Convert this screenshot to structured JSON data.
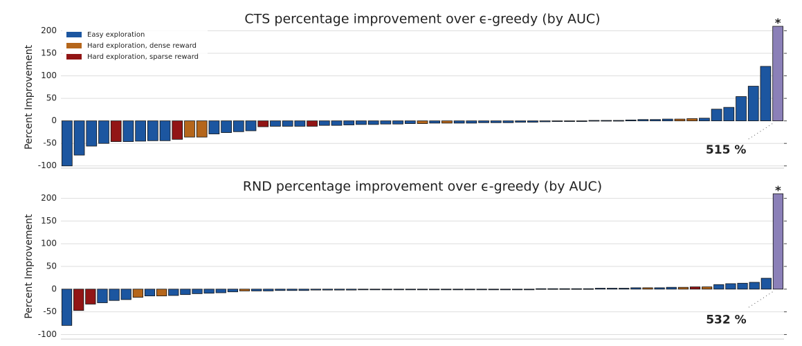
{
  "chart_data": [
    {
      "type": "bar",
      "title": "CTS percentage improvement over ϵ-greedy (by AUC)",
      "y_label": "Percent Improvement",
      "legend": [
        {
          "name": "Easy exploration",
          "color": "#1c56a0"
        },
        {
          "name": "Hard exploration, dense reward",
          "color": "#b5661b"
        },
        {
          "name": "Hard exploration, sparse reward",
          "color": "#921515"
        }
      ],
      "legend_position": "upper left",
      "values": [
        -100,
        -76,
        -56,
        -50,
        -46,
        -46,
        -45,
        -44,
        -44,
        -41,
        -36,
        -36,
        -29,
        -26,
        -24,
        -22,
        -13,
        -12,
        -12,
        -12,
        -12,
        -10,
        -10,
        -9,
        -8,
        -8,
        -7,
        -7,
        -6,
        -6,
        -5,
        -5,
        -5,
        -5,
        -4,
        -4,
        -4,
        -3,
        -3,
        -2,
        -1,
        -1,
        0,
        1,
        1,
        1,
        2,
        3,
        3,
        4,
        4,
        5,
        6,
        26,
        30,
        54,
        77,
        121,
        515
      ],
      "colors": [
        "#1c56a0",
        "#1c56a0",
        "#1c56a0",
        "#1c56a0",
        "#921515",
        "#1c56a0",
        "#1c56a0",
        "#1c56a0",
        "#1c56a0",
        "#921515",
        "#b5661b",
        "#b5661b",
        "#1c56a0",
        "#1c56a0",
        "#1c56a0",
        "#1c56a0",
        "#921515",
        "#1c56a0",
        "#1c56a0",
        "#1c56a0",
        "#921515",
        "#1c56a0",
        "#1c56a0",
        "#1c56a0",
        "#1c56a0",
        "#1c56a0",
        "#1c56a0",
        "#1c56a0",
        "#1c56a0",
        "#b5661b",
        "#1c56a0",
        "#b5661b",
        "#1c56a0",
        "#1c56a0",
        "#1c56a0",
        "#1c56a0",
        "#1c56a0",
        "#1c56a0",
        "#1c56a0",
        "#1c56a0",
        "#1c56a0",
        "#1c56a0",
        "#1c56a0",
        "#1c56a0",
        "#1c56a0",
        "#1c56a0",
        "#1c56a0",
        "#1c56a0",
        "#1c56a0",
        "#1c56a0",
        "#b5661b",
        "#b5661b",
        "#1c56a0",
        "#1c56a0",
        "#1c56a0",
        "#1c56a0",
        "#1c56a0",
        "#1c56a0",
        "#8b80b8"
      ],
      "value_labels": [
        null,
        null,
        null,
        null,
        null,
        null,
        null,
        null,
        null,
        null,
        null,
        null,
        null,
        null,
        null,
        null,
        null,
        null,
        null,
        null,
        null,
        null,
        null,
        null,
        null,
        null,
        null,
        null,
        null,
        null,
        null,
        null,
        null,
        null,
        null,
        null,
        null,
        null,
        null,
        null,
        null,
        null,
        null,
        null,
        null,
        null,
        null,
        null,
        null,
        null,
        null,
        null,
        null,
        null,
        null,
        null,
        null,
        null,
        "515 %"
      ],
      "clip_marker": "*",
      "ylim": [
        -105,
        210
      ],
      "yticks": [
        -100,
        -50,
        0,
        50,
        100,
        150,
        200
      ],
      "grid": true
    },
    {
      "type": "bar",
      "title": "RND percentage improvement over ϵ-greedy (by AUC)",
      "y_label": "Percent Improvement",
      "values": [
        -80,
        -47,
        -33,
        -30,
        -25,
        -23,
        -18,
        -15,
        -15,
        -14,
        -12,
        -10,
        -9,
        -8,
        -6,
        -4,
        -4,
        -4,
        -3,
        -3,
        -3,
        -2,
        -2,
        -2,
        -2,
        -1,
        -1,
        -1,
        -1,
        -1,
        -1,
        -1,
        0,
        0,
        0,
        0,
        0,
        0,
        0,
        0,
        1,
        1,
        1,
        1,
        1,
        2,
        2,
        2,
        3,
        3,
        3,
        4,
        4,
        5,
        5,
        10,
        12,
        13,
        15,
        24,
        532
      ],
      "colors": [
        "#1c56a0",
        "#921515",
        "#921515",
        "#1c56a0",
        "#1c56a0",
        "#1c56a0",
        "#b5661b",
        "#1c56a0",
        "#b5661b",
        "#1c56a0",
        "#1c56a0",
        "#1c56a0",
        "#1c56a0",
        "#1c56a0",
        "#1c56a0",
        "#b5661b",
        "#1c56a0",
        "#1c56a0",
        "#1c56a0",
        "#1c56a0",
        "#1c56a0",
        "#1c56a0",
        "#1c56a0",
        "#1c56a0",
        "#1c56a0",
        "#1c56a0",
        "#1c56a0",
        "#1c56a0",
        "#1c56a0",
        "#1c56a0",
        "#1c56a0",
        "#1c56a0",
        "#1c56a0",
        "#1c56a0",
        "#1c56a0",
        "#1c56a0",
        "#1c56a0",
        "#1c56a0",
        "#1c56a0",
        "#1c56a0",
        "#1c56a0",
        "#1c56a0",
        "#1c56a0",
        "#1c56a0",
        "#1c56a0",
        "#1c56a0",
        "#1c56a0",
        "#1c56a0",
        "#1c56a0",
        "#b5661b",
        "#1c56a0",
        "#1c56a0",
        "#b5661b",
        "#921515",
        "#b5661b",
        "#1c56a0",
        "#1c56a0",
        "#1c56a0",
        "#1c56a0",
        "#1c56a0",
        "#8b80b8"
      ],
      "value_labels": [
        null,
        null,
        null,
        null,
        null,
        null,
        null,
        null,
        null,
        null,
        null,
        null,
        null,
        null,
        null,
        null,
        null,
        null,
        null,
        null,
        null,
        null,
        null,
        null,
        null,
        null,
        null,
        null,
        null,
        null,
        null,
        null,
        null,
        null,
        null,
        null,
        null,
        null,
        null,
        null,
        null,
        null,
        null,
        null,
        null,
        null,
        null,
        null,
        null,
        null,
        null,
        null,
        null,
        null,
        null,
        null,
        null,
        null,
        null,
        null,
        "532 %"
      ],
      "clip_marker": "*",
      "ylim": [
        -110,
        210
      ],
      "yticks": [
        -100,
        -50,
        0,
        50,
        100,
        150,
        200
      ],
      "grid": true
    }
  ]
}
